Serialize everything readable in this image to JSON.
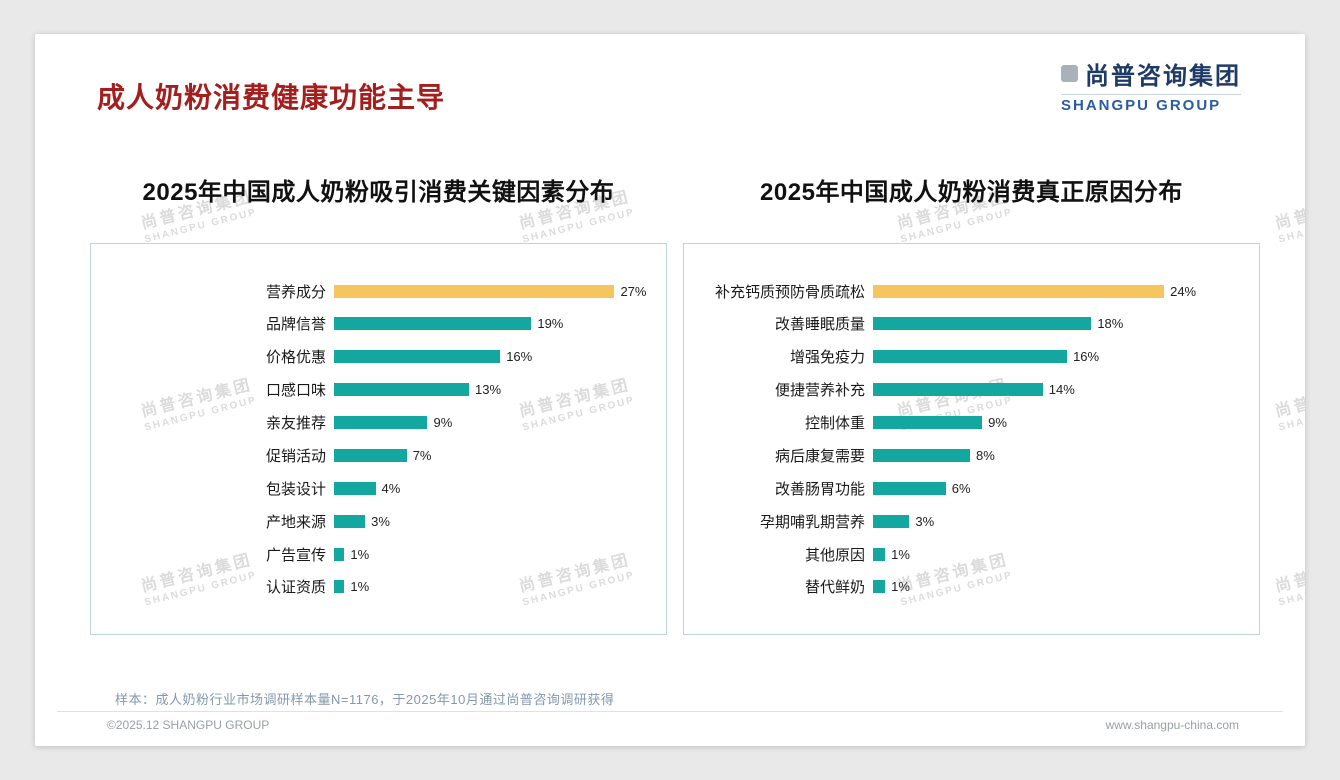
{
  "page": {
    "title": "成人奶粉消费健康功能主导",
    "sample_note": "样本：成人奶粉行业市场调研样本量N=1176，于2025年10月通过尚普咨询调研获得",
    "footer_left": "©2025.12 SHANGPU GROUP",
    "footer_right": "www.shangpu-china.com"
  },
  "logo": {
    "cn": "尚普咨询集团",
    "en": "SHANGPU GROUP"
  },
  "watermark": {
    "cn": "尚普咨询集团",
    "en": "SHANGPU GROUP"
  },
  "colors": {
    "accent_teal": "#13A7A0",
    "accent_gold": "#F7C55F",
    "title_red": "#A51E1E",
    "logo_navy": "#1E3A66",
    "logo_blue": "#2B5CA0"
  },
  "chart_data": [
    {
      "type": "bar",
      "orientation": "horizontal",
      "title": "2025年中国成人奶粉吸引消费关键因素分布",
      "categories": [
        "营养成分",
        "品牌信誉",
        "价格优惠",
        "口感口味",
        "亲友推荐",
        "促销活动",
        "包装设计",
        "产地来源",
        "广告宣传",
        "认证资质"
      ],
      "values": [
        27,
        19,
        16,
        13,
        9,
        7,
        4,
        3,
        1,
        1
      ],
      "value_suffix": "%",
      "xmax": 31,
      "highlight_first": true,
      "grid": false,
      "legend": false
    },
    {
      "type": "bar",
      "orientation": "horizontal",
      "title": "2025年中国成人奶粉消费真正原因分布",
      "categories": [
        "补充钙质预防骨质疏松",
        "改善睡眠质量",
        "增强免疫力",
        "便捷营养补充",
        "控制体重",
        "病后康复需要",
        "改善肠胃功能",
        "孕期哺乳期营养",
        "其他原因",
        "替代鲜奶"
      ],
      "values": [
        24,
        18,
        16,
        14,
        9,
        8,
        6,
        3,
        1,
        1
      ],
      "value_suffix": "%",
      "xmax": 31,
      "highlight_first": true,
      "grid": false,
      "legend": false
    }
  ]
}
